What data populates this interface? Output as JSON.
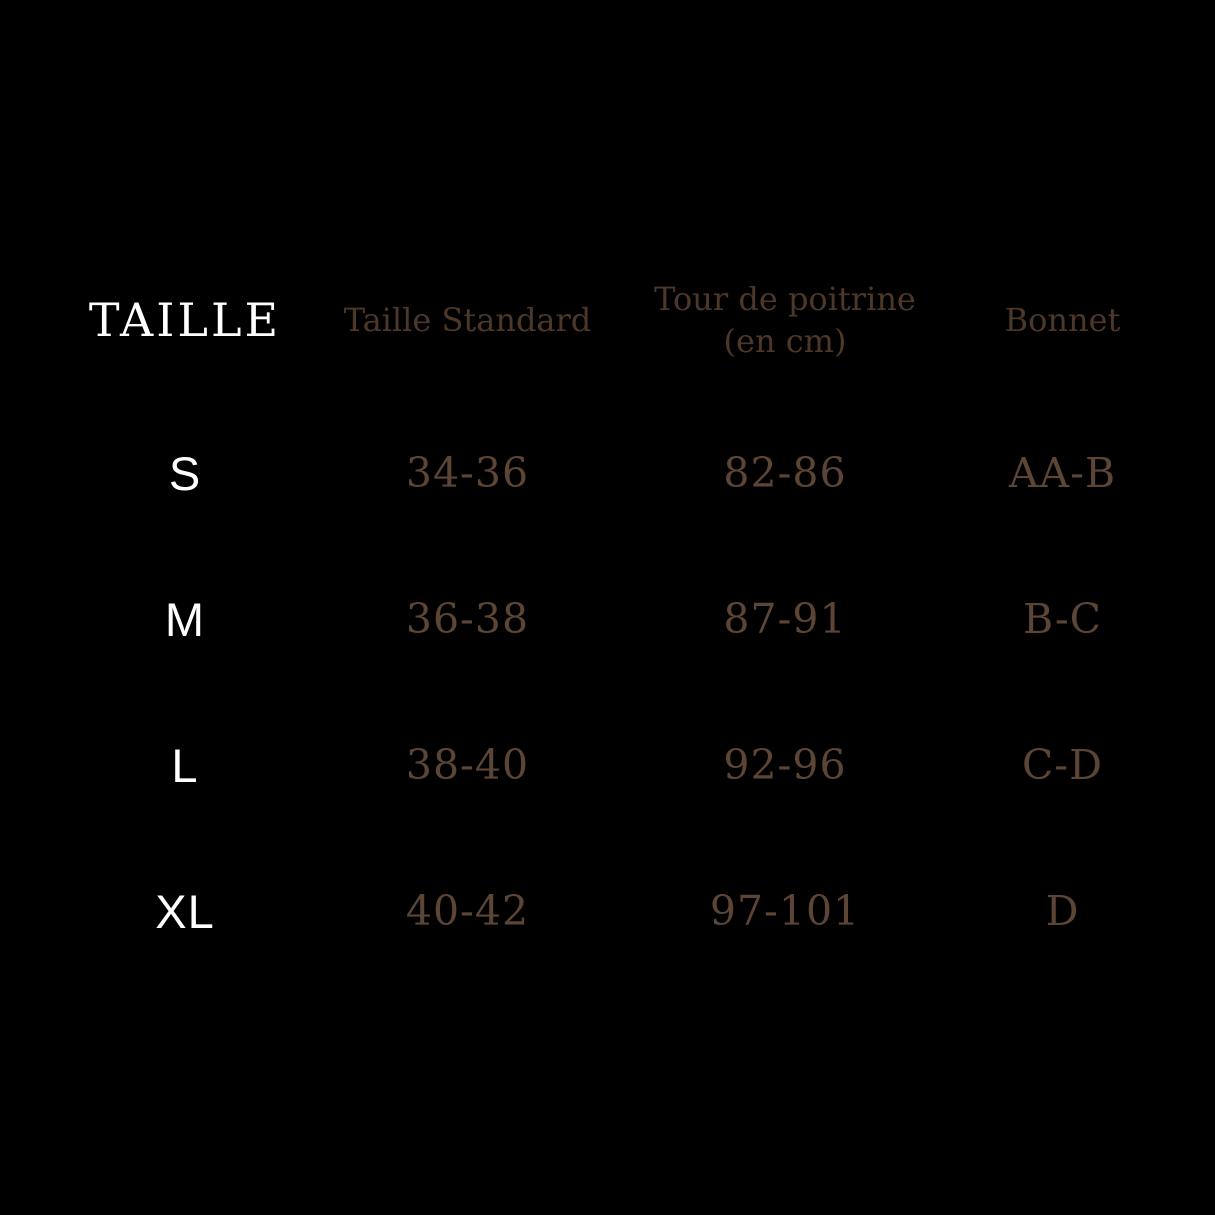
{
  "colors": {
    "background": "#000000",
    "header_taille": "#ffffff",
    "column_header": "#4d3729",
    "row_label": "#ffffff",
    "value_text": "#5d4536"
  },
  "table": {
    "columns": [
      {
        "label": "TAILLE",
        "sublabel": ""
      },
      {
        "label": "Taille Standard",
        "sublabel": ""
      },
      {
        "label": "Tour de poitrine",
        "sublabel": "(en cm)"
      },
      {
        "label": "Bonnet",
        "sublabel": ""
      }
    ]
  },
  "chart_data": {
    "type": "table",
    "title": "",
    "columns": [
      "TAILLE",
      "Taille Standard",
      "Tour de poitrine (en cm)",
      "Bonnet"
    ],
    "rows": [
      [
        "S",
        "34-36",
        "82-86",
        "AA-B"
      ],
      [
        "M",
        "36-38",
        "87-91",
        "B-C"
      ],
      [
        "L",
        "38-40",
        "92-96",
        "C-D"
      ],
      [
        "XL",
        "40-42",
        "97-101",
        "D"
      ]
    ]
  }
}
